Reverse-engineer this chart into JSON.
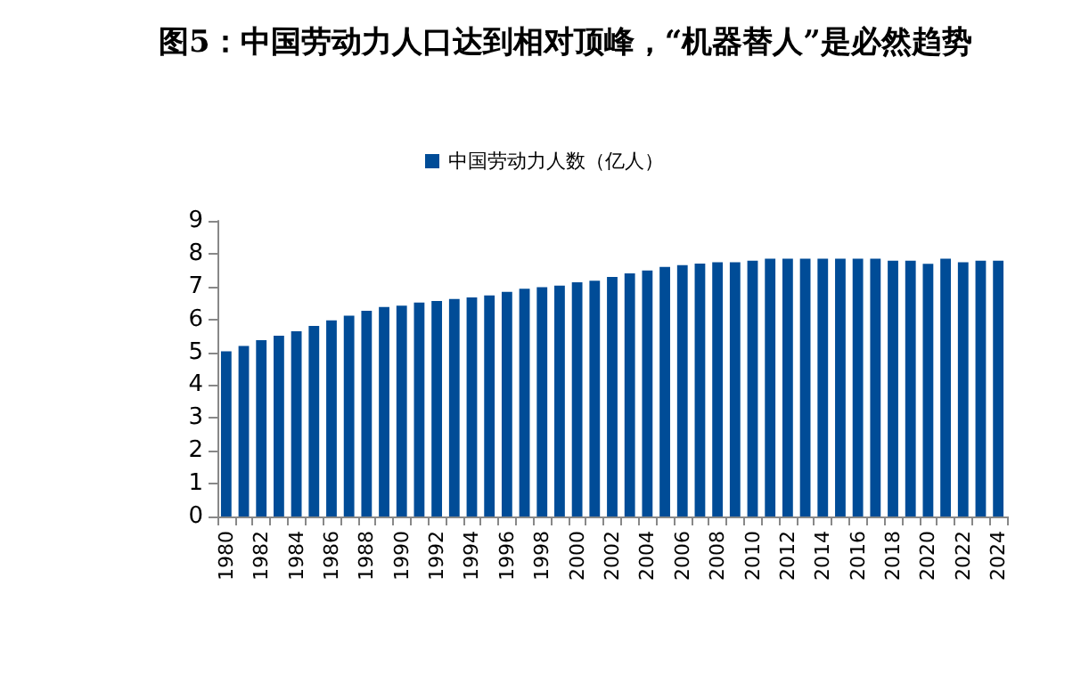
{
  "chart_data": {
    "type": "bar",
    "title": "图5：中国劳动力人口达到相对顶峰，“机器替人”是必然趋势",
    "categories": [
      "1980",
      null,
      "1982",
      null,
      "1984",
      null,
      "1986",
      null,
      "1988",
      null,
      "1990",
      null,
      "1992",
      null,
      "1994",
      null,
      "1996",
      null,
      "1998",
      null,
      "2000",
      null,
      "2002",
      null,
      "2004",
      null,
      "2006",
      null,
      "2008",
      null,
      "2010",
      null,
      "2012",
      null,
      "2014",
      null,
      "2016",
      null,
      "2018",
      null,
      "2020",
      null,
      "2022",
      null,
      "2024"
    ],
    "series": [
      {
        "name": "中国劳动力人数（亿人）",
        "color": "#004c97",
        "values": [
          5.03,
          5.19,
          5.37,
          5.5,
          5.64,
          5.8,
          5.97,
          6.11,
          6.26,
          6.38,
          6.42,
          6.51,
          6.56,
          6.62,
          6.67,
          6.73,
          6.84,
          6.93,
          6.98,
          7.03,
          7.13,
          7.18,
          7.29,
          7.4,
          7.49,
          7.6,
          7.65,
          7.7,
          7.74,
          7.74,
          7.79,
          7.85,
          7.85,
          7.85,
          7.85,
          7.85,
          7.85,
          7.85,
          7.79,
          7.79,
          7.69,
          7.85,
          7.74,
          7.79,
          7.79
        ]
      }
    ],
    "ylim": [
      0,
      9
    ],
    "yticks": [
      0,
      1,
      2,
      3,
      4,
      5,
      6,
      7,
      8,
      9
    ],
    "grid": false,
    "legend": "top"
  }
}
